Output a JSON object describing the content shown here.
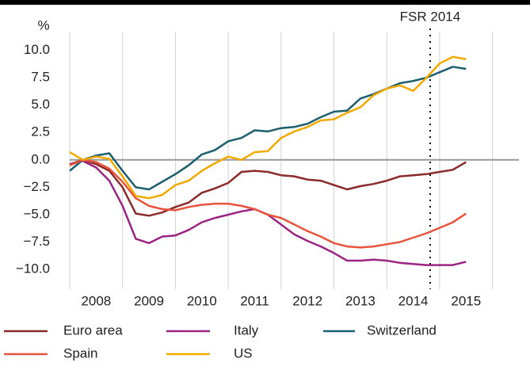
{
  "chart_data": {
    "type": "line",
    "y_unit": "%",
    "x": [
      2008.0,
      2008.25,
      2008.5,
      2008.75,
      2009.0,
      2009.25,
      2009.5,
      2009.75,
      2010.0,
      2010.25,
      2010.5,
      2010.75,
      2011.0,
      2011.25,
      2011.5,
      2011.75,
      2012.0,
      2012.25,
      2012.5,
      2012.75,
      2013.0,
      2013.25,
      2013.5,
      2013.75,
      2014.0,
      2014.25,
      2014.5,
      2014.75,
      2015.0,
      2015.25,
      2015.5
    ],
    "series": [
      {
        "name": "Euro area",
        "color": "#8b2a2a",
        "values": [
          -0.4,
          0.0,
          -0.4,
          -1.0,
          -2.5,
          -4.9,
          -5.1,
          -4.8,
          -4.3,
          -3.9,
          -3.0,
          -2.6,
          -2.1,
          -1.1,
          -1.0,
          -1.1,
          -1.4,
          -1.5,
          -1.8,
          -1.9,
          -2.3,
          -2.7,
          -2.4,
          -2.2,
          -1.9,
          -1.5,
          -1.4,
          -1.3,
          -1.1,
          -0.9,
          -0.2
        ]
      },
      {
        "name": "Italy",
        "color": "#9b2582",
        "values": [
          -0.4,
          -0.1,
          -0.7,
          -1.9,
          -4.2,
          -7.2,
          -7.6,
          -7.0,
          -6.9,
          -6.4,
          -5.7,
          -5.3,
          -5.0,
          -4.7,
          -4.5,
          -5.0,
          -5.9,
          -6.8,
          -7.4,
          -7.9,
          -8.5,
          -9.2,
          -9.2,
          -9.1,
          -9.2,
          -9.4,
          -9.5,
          -9.6,
          -9.6,
          -9.6,
          -9.3
        ]
      },
      {
        "name": "Switzerland",
        "color": "#1b5f6e",
        "values": [
          -1.0,
          0.0,
          0.4,
          0.6,
          -1.0,
          -2.5,
          -2.7,
          -2.0,
          -1.3,
          -0.5,
          0.5,
          0.9,
          1.7,
          2.0,
          2.7,
          2.6,
          2.9,
          3.0,
          3.3,
          3.9,
          4.4,
          4.5,
          5.6,
          6.0,
          6.5,
          7.0,
          7.2,
          7.5,
          8.0,
          8.5,
          8.3
        ]
      },
      {
        "name": "Spain",
        "color": "#e8533c",
        "values": [
          -0.5,
          0.0,
          -0.2,
          -0.8,
          -2.0,
          -3.5,
          -4.2,
          -4.5,
          -4.6,
          -4.3,
          -4.1,
          -4.0,
          -4.0,
          -4.2,
          -4.5,
          -5.0,
          -5.3,
          -5.9,
          -6.5,
          -7.0,
          -7.6,
          -7.9,
          -8.0,
          -7.9,
          -7.7,
          -7.5,
          -7.1,
          -6.7,
          -6.2,
          -5.7,
          -4.9
        ]
      },
      {
        "name": "US",
        "color": "#f2a900",
        "values": [
          0.7,
          0.0,
          0.3,
          0.1,
          -1.5,
          -3.3,
          -3.5,
          -3.2,
          -2.3,
          -1.9,
          -1.0,
          -0.3,
          0.3,
          0.0,
          0.7,
          0.8,
          2.0,
          2.6,
          3.0,
          3.6,
          3.7,
          4.3,
          4.8,
          5.9,
          6.5,
          6.8,
          6.3,
          7.5,
          8.8,
          9.4,
          9.2
        ]
      }
    ],
    "xlim": [
      2008.0,
      2016.5
    ],
    "xticks": [
      {
        "value": 2008.5,
        "label": "2008"
      },
      {
        "value": 2009.5,
        "label": "2009"
      },
      {
        "value": 2010.5,
        "label": "2010"
      },
      {
        "value": 2011.5,
        "label": "2011"
      },
      {
        "value": 2012.5,
        "label": "2012"
      },
      {
        "value": 2013.5,
        "label": "2013"
      },
      {
        "value": 2014.5,
        "label": "2014"
      },
      {
        "value": 2015.5,
        "label": "2015"
      }
    ],
    "ylim": [
      -11.8,
      11.7
    ],
    "yticks": [
      {
        "value": 10,
        "label": "10.0"
      },
      {
        "value": 7.5,
        "label": "7.5"
      },
      {
        "value": 5,
        "label": "5.0"
      },
      {
        "value": 2.5,
        "label": "2.5"
      },
      {
        "value": 0,
        "label": "0.0"
      },
      {
        "value": -2.5,
        "label": "−2.5"
      },
      {
        "value": -5,
        "label": "−5.0"
      },
      {
        "value": -7.5,
        "label": "−7.5"
      },
      {
        "value": -10,
        "label": "−10.0"
      }
    ],
    "annotations": [
      {
        "text": "FSR 2014",
        "x": 2014.82
      }
    ]
  }
}
